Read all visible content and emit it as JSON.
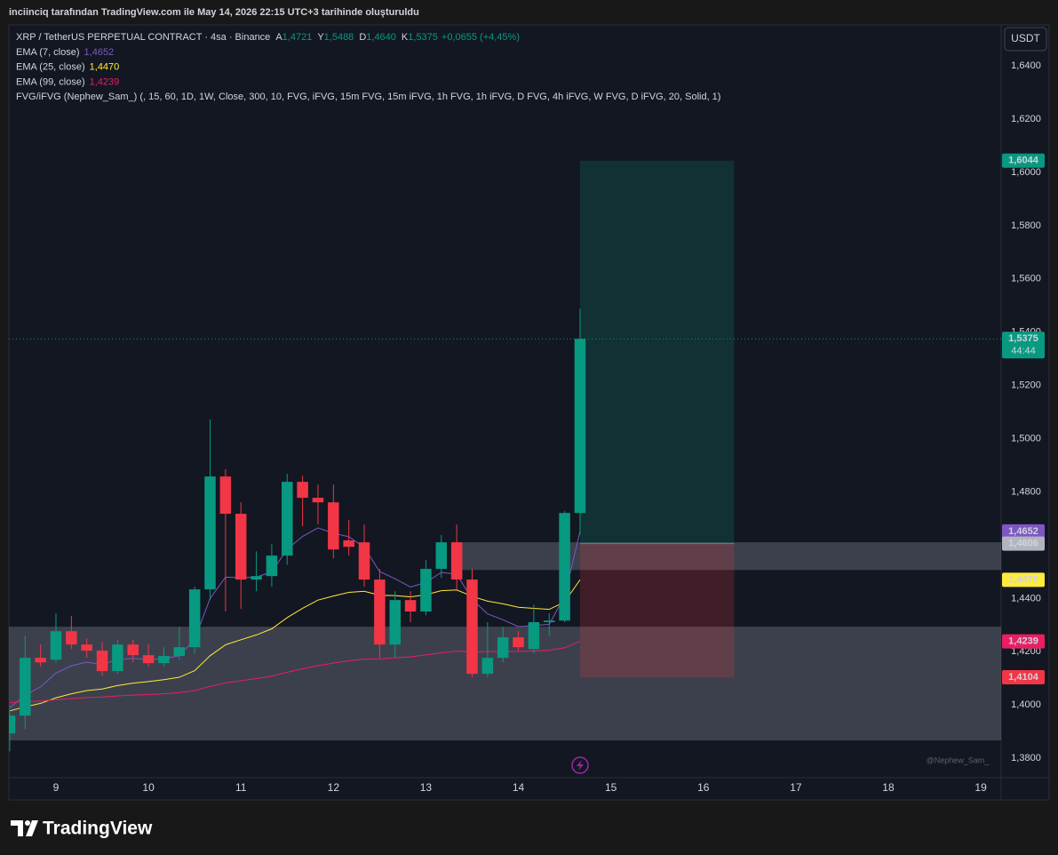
{
  "header": {
    "caption": "inciinciq tarafından TradingView.com ile May 14, 2026 22:15 UTC+3 tarihinde oluşturuldu",
    "currency_button": "USDT",
    "watermark": "@Nephew_Sam_",
    "brand": "TradingView"
  },
  "chart_data": {
    "type": "candlestick",
    "title": "XRP / TetherUS PERPETUAL CONTRACT · 4sa · Binance",
    "ohlc_legend": [
      {
        "key": "A",
        "value": "1,4721"
      },
      {
        "key": "Y",
        "value": "1,5488"
      },
      {
        "key": "D",
        "value": "1,4640"
      },
      {
        "key": "K",
        "value": "1,5375"
      }
    ],
    "change": "+0,0655 (+4,45%)",
    "indicator": "FVG/iFVG (Nephew_Sam_) (, 15, 60, 1D, 1W, Close, 300, 10, FVG, iFVG, 15m FVG, 15m iFVG, 1h FVG, 1h iFVG, D FVG, 4h iFVG, W FVG, D iFVG, 20, Solid, 1)",
    "up_color": "#089981",
    "down_color": "#f23645",
    "x": [
      8.5,
      8.6667,
      8.8333,
      9,
      9.1667,
      9.3333,
      9.5,
      9.6667,
      9.8333,
      10,
      10.1667,
      10.3333,
      10.5,
      10.6667,
      10.8333,
      11,
      11.1667,
      11.3333,
      11.5,
      11.6667,
      11.8333,
      12,
      12.1667,
      12.3333,
      12.5,
      12.6667,
      12.8333,
      13,
      13.1667,
      13.3333,
      13.5,
      13.6667,
      13.8333,
      14,
      14.1667,
      14.3333,
      14.5,
      14.6667
    ],
    "open": [
      1.3893,
      1.396,
      1.4177,
      1.417,
      1.4277,
      1.4227,
      1.4204,
      1.4127,
      1.4227,
      1.4187,
      1.4157,
      1.4184,
      1.4217,
      1.4434,
      1.4858,
      1.4718,
      1.4471,
      1.4484,
      1.4561,
      1.4838,
      1.4778,
      1.4761,
      1.4618,
      1.4611,
      1.4471,
      1.4227,
      1.4394,
      1.4351,
      1.4511,
      1.4611,
      1.4471,
      1.4117,
      1.4177,
      1.4254,
      1.421,
      1.4311,
      1.4317,
      1.4721
    ],
    "high": [
      1.398,
      1.426,
      1.4227,
      1.4344,
      1.4334,
      1.425,
      1.4237,
      1.4244,
      1.4244,
      1.4227,
      1.4217,
      1.4294,
      1.4444,
      1.5072,
      1.4885,
      1.4761,
      1.4577,
      1.4604,
      1.4868,
      1.4861,
      1.4828,
      1.4828,
      1.4694,
      1.4678,
      1.4511,
      1.4427,
      1.4427,
      1.4544,
      1.4638,
      1.4678,
      1.4511,
      1.4311,
      1.4294,
      1.4277,
      1.4377,
      1.4344,
      1.4728,
      1.5488
    ],
    "low": [
      1.3826,
      1.391,
      1.4144,
      1.416,
      1.421,
      1.4177,
      1.411,
      1.4117,
      1.416,
      1.4144,
      1.4144,
      1.417,
      1.4194,
      1.4394,
      1.4351,
      1.4361,
      1.4427,
      1.4444,
      1.4527,
      1.4671,
      1.4678,
      1.4551,
      1.4561,
      1.4444,
      1.4177,
      1.4177,
      1.4311,
      1.4337,
      1.4477,
      1.4427,
      1.4103,
      1.4103,
      1.416,
      1.4204,
      1.4194,
      1.426,
      1.4311,
      1.464
    ],
    "close": [
      1.396,
      1.4177,
      1.416,
      1.4277,
      1.4227,
      1.4204,
      1.4127,
      1.4227,
      1.4187,
      1.4157,
      1.4184,
      1.4217,
      1.4434,
      1.4858,
      1.4718,
      1.4471,
      1.4484,
      1.4561,
      1.4838,
      1.4778,
      1.4761,
      1.4584,
      1.4594,
      1.4471,
      1.4227,
      1.4394,
      1.4351,
      1.4511,
      1.4611,
      1.4471,
      1.4117,
      1.4177,
      1.4254,
      1.4217,
      1.4311,
      1.4317,
      1.4721,
      1.5375
    ],
    "series": [
      {
        "name": "EMA (7, close)",
        "color": "#7e57c2",
        "legend_value": "1,4652",
        "values": [
          1.399,
          1.4037,
          1.4068,
          1.412,
          1.4147,
          1.4161,
          1.4152,
          1.4171,
          1.4175,
          1.417,
          1.4174,
          1.4185,
          1.4247,
          1.44,
          1.448,
          1.4478,
          1.448,
          1.45,
          1.4585,
          1.4633,
          1.4665,
          1.4645,
          1.4632,
          1.4592,
          1.4501,
          1.4474,
          1.4443,
          1.446,
          1.4498,
          1.4491,
          1.4397,
          1.4342,
          1.432,
          1.4294,
          1.4298,
          1.4303,
          1.4408,
          1.4652
        ]
      },
      {
        "name": "EMA (25, close)",
        "color": "#ffeb3b",
        "legend_value": "1,4470",
        "values": [
          1.3978,
          1.3993,
          1.4006,
          1.4027,
          1.4042,
          1.4054,
          1.406,
          1.4073,
          1.4082,
          1.4088,
          1.4095,
          1.4104,
          1.4129,
          1.4185,
          1.4226,
          1.4245,
          1.4263,
          1.4286,
          1.4328,
          1.4363,
          1.4394,
          1.4409,
          1.4423,
          1.4427,
          1.4412,
          1.4411,
          1.4406,
          1.4414,
          1.4429,
          1.4432,
          1.4408,
          1.439,
          1.438,
          1.4367,
          1.4363,
          1.4359,
          1.4387,
          1.447
        ]
      },
      {
        "name": "EMA (99, close)",
        "color": "#e91e63",
        "legend_value": "1,4239",
        "values": [
          1.4009,
          1.4012,
          1.4015,
          1.402,
          1.4024,
          1.4028,
          1.403,
          1.4034,
          1.4037,
          1.4039,
          1.4042,
          1.4046,
          1.4054,
          1.407,
          1.4083,
          1.4091,
          1.4099,
          1.4108,
          1.4123,
          1.4136,
          1.4148,
          1.4157,
          1.4166,
          1.4172,
          1.4173,
          1.4177,
          1.4181,
          1.4188,
          1.4196,
          1.4202,
          1.42,
          1.42,
          1.4201,
          1.4201,
          1.4203,
          1.4205,
          1.4215,
          1.4239
        ]
      }
    ],
    "zones": [
      {
        "top": 1.4611,
        "bottom": 1.4507,
        "x_start": 13.3333
      },
      {
        "top": 1.4294,
        "bottom": 1.3867,
        "x_start": 8.491
      }
    ],
    "zone_color": "rgba(150,153,165,0.32)",
    "position": {
      "entry": 1.4606,
      "target": 1.6044,
      "stop": 1.4104,
      "x_start": 14.6667,
      "x_end": 16.3333,
      "target_color": "rgba(8,153,129,0.2)",
      "stop_color": "rgba(242,54,69,0.2)"
    },
    "price_labels": [
      {
        "value": 1.6044,
        "label": "1,6044",
        "color": "#089981",
        "text_color": "#ffffff"
      },
      {
        "value": 1.5375,
        "label": "1,5375",
        "sub": "44:44",
        "color": "#089981",
        "text_color": "#ffffff"
      },
      {
        "value": 1.4652,
        "label": "1,4652",
        "color": "#7e57c2",
        "text_color": "#ffffff"
      },
      {
        "value": 1.4606,
        "label": "1,4606",
        "color": "#b2b5be",
        "text_color": "#131722"
      },
      {
        "value": 1.447,
        "label": "1,4470",
        "color": "#ffeb3b",
        "text_color": "#131722"
      },
      {
        "value": 1.4239,
        "label": "1,4239",
        "color": "#e91e63",
        "text_color": "#ffffff"
      },
      {
        "value": 1.4104,
        "label": "1,4104",
        "color": "#f23645",
        "text_color": "#ffffff"
      }
    ],
    "xlim": [
      8.491,
      19.22
    ],
    "xticks": [
      9,
      10,
      11,
      12,
      13,
      14,
      15,
      16,
      17,
      18,
      19
    ],
    "ylim": [
      1.3727,
      1.6554
    ],
    "yticks": [
      {
        "value": 1.38,
        "label": "1,3800"
      },
      {
        "value": 1.4,
        "label": "1,4000"
      },
      {
        "value": 1.42,
        "label": "1,4200"
      },
      {
        "value": 1.44,
        "label": "1,4400"
      },
      {
        "value": 1.46,
        "label": "1,4600"
      },
      {
        "value": 1.48,
        "label": "1,4800"
      },
      {
        "value": 1.5,
        "label": "1,5000"
      },
      {
        "value": 1.52,
        "label": "1,5200"
      },
      {
        "value": 1.54,
        "label": "1,5400"
      },
      {
        "value": 1.56,
        "label": "1,5600"
      },
      {
        "value": 1.58,
        "label": "1,5800"
      },
      {
        "value": 1.6,
        "label": "1,6000"
      },
      {
        "value": 1.62,
        "label": "1,6200"
      },
      {
        "value": 1.64,
        "label": "1,6400"
      }
    ],
    "grid": false
  }
}
